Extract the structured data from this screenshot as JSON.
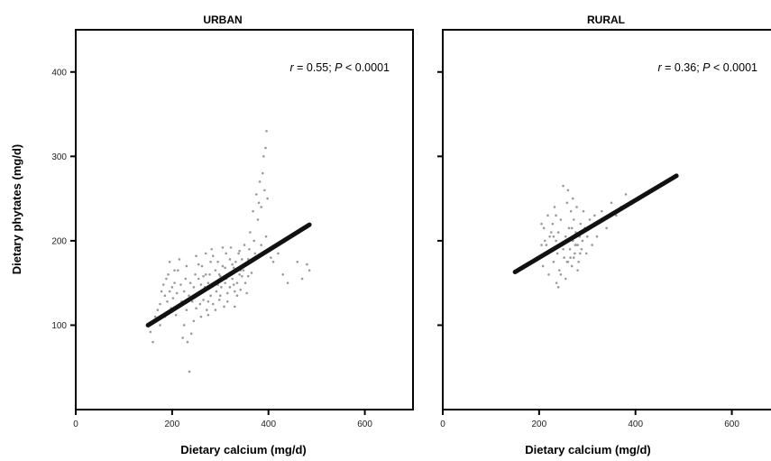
{
  "chart_data": [
    {
      "type": "scatter",
      "title": "URBAN",
      "xlabel": "Dietary calcium  (mg/d)",
      "ylabel": "Dietary phytates  (mg/d)",
      "xlim": [
        0,
        700
      ],
      "ylim": [
        0,
        450
      ],
      "xticks": [
        0,
        200,
        400,
        600
      ],
      "yticks": [
        100,
        200,
        300,
        400
      ],
      "annotation": {
        "r_symbol": "r",
        "r_text": " = 0.55; ",
        "p_symbol": "P",
        "p_text": " < 0.0001"
      },
      "regression_line": [
        [
          150,
          100
        ],
        [
          485,
          219
        ]
      ],
      "scatter_color": "#9a9a9a",
      "line_color": "#111111",
      "points": [
        [
          155,
          92
        ],
        [
          160,
          80
        ],
        [
          165,
          110
        ],
        [
          170,
          118
        ],
        [
          175,
          125
        ],
        [
          178,
          140
        ],
        [
          182,
          148
        ],
        [
          185,
          135
        ],
        [
          188,
          155
        ],
        [
          190,
          128
        ],
        [
          192,
          160
        ],
        [
          195,
          175
        ],
        [
          198,
          120
        ],
        [
          200,
          145
        ],
        [
          202,
          132
        ],
        [
          205,
          150
        ],
        [
          208,
          112
        ],
        [
          210,
          138
        ],
        [
          212,
          165
        ],
        [
          215,
          122
        ],
        [
          218,
          148
        ],
        [
          220,
          128
        ],
        [
          222,
          85
        ],
        [
          225,
          140
        ],
        [
          228,
          155
        ],
        [
          230,
          118
        ],
        [
          232,
          80
        ],
        [
          235,
          135
        ],
        [
          236,
          45
        ],
        [
          238,
          150
        ],
        [
          240,
          90
        ],
        [
          242,
          128
        ],
        [
          245,
          145
        ],
        [
          248,
          160
        ],
        [
          250,
          120
        ],
        [
          252,
          138
        ],
        [
          255,
          155
        ],
        [
          258,
          125
        ],
        [
          260,
          148
        ],
        [
          262,
          170
        ],
        [
          265,
          130
        ],
        [
          268,
          145
        ],
        [
          270,
          185
        ],
        [
          272,
          118
        ],
        [
          275,
          150
        ],
        [
          278,
          160
        ],
        [
          280,
          135
        ],
        [
          282,
          190
        ],
        [
          285,
          125
        ],
        [
          288,
          148
        ],
        [
          290,
          165
        ],
        [
          292,
          140
        ],
        [
          295,
          175
        ],
        [
          298,
          130
        ],
        [
          300,
          158
        ],
        [
          302,
          145
        ],
        [
          305,
          170
        ],
        [
          308,
          122
        ],
        [
          310,
          150
        ],
        [
          312,
          185
        ],
        [
          315,
          138
        ],
        [
          318,
          160
        ],
        [
          320,
          145
        ],
        [
          322,
          192
        ],
        [
          325,
          155
        ],
        [
          328,
          168
        ],
        [
          330,
          140
        ],
        [
          332,
          175
        ],
        [
          335,
          150
        ],
        [
          338,
          185
        ],
        [
          340,
          160
        ],
        [
          342,
          142
        ],
        [
          345,
          178
        ],
        [
          348,
          165
        ],
        [
          350,
          195
        ],
        [
          352,
          150
        ],
        [
          355,
          172
        ],
        [
          358,
          158
        ],
        [
          360,
          190
        ],
        [
          362,
          210
        ],
        [
          365,
          175
        ],
        [
          368,
          235
        ],
        [
          370,
          200
        ],
        [
          372,
          185
        ],
        [
          375,
          255
        ],
        [
          378,
          225
        ],
        [
          380,
          245
        ],
        [
          382,
          270
        ],
        [
          385,
          240
        ],
        [
          388,
          280
        ],
        [
          390,
          300
        ],
        [
          392,
          260
        ],
        [
          394,
          310
        ],
        [
          396,
          330
        ],
        [
          398,
          250
        ],
        [
          400,
          190
        ],
        [
          405,
          180
        ],
        [
          410,
          175
        ],
        [
          420,
          185
        ],
        [
          430,
          160
        ],
        [
          440,
          150
        ],
        [
          460,
          175
        ],
        [
          470,
          155
        ],
        [
          480,
          172
        ],
        [
          485,
          165
        ],
        [
          250,
          182
        ],
        [
          260,
          110
        ],
        [
          270,
          160
        ],
        [
          280,
          175
        ],
        [
          290,
          118
        ],
        [
          300,
          135
        ],
        [
          310,
          168
        ],
        [
          320,
          178
        ],
        [
          330,
          122
        ],
        [
          340,
          188
        ],
        [
          230,
          170
        ],
        [
          215,
          178
        ],
        [
          205,
          165
        ],
        [
          195,
          140
        ],
        [
          185,
          110
        ],
        [
          175,
          100
        ],
        [
          245,
          105
        ],
        [
          255,
          172
        ],
        [
          265,
          158
        ],
        [
          275,
          128
        ],
        [
          285,
          182
        ],
        [
          295,
          148
        ],
        [
          305,
          192
        ],
        [
          315,
          128
        ],
        [
          325,
          172
        ],
        [
          335,
          135
        ],
        [
          345,
          158
        ],
        [
          355,
          138
        ],
        [
          365,
          162
        ],
        [
          375,
          180
        ],
        [
          385,
          195
        ],
        [
          395,
          205
        ],
        [
          225,
          100
        ],
        [
          240,
          132
        ],
        [
          265,
          142
        ],
        [
          275,
          112
        ],
        [
          298,
          160
        ],
        [
          312,
          155
        ],
        [
          328,
          148
        ],
        [
          342,
          165
        ],
        [
          358,
          178
        ]
      ]
    },
    {
      "type": "scatter",
      "title": "RURAL",
      "xlabel": "Dietary calcium  (mg/d)",
      "ylabel": "",
      "xlim": [
        0,
        700
      ],
      "ylim": [
        0,
        450
      ],
      "xticks": [
        0,
        200,
        400,
        600
      ],
      "yticks": [
        100,
        200,
        300,
        400
      ],
      "annotation": {
        "r_symbol": "r",
        "r_text": " = 0.36; ",
        "p_symbol": "P",
        "p_text": " < 0.0001"
      },
      "regression_line": [
        [
          150,
          163
        ],
        [
          485,
          277
        ]
      ],
      "scatter_color": "#9a9a9a",
      "line_color": "#111111",
      "points": [
        [
          200,
          180
        ],
        [
          205,
          195
        ],
        [
          208,
          170
        ],
        [
          210,
          215
        ],
        [
          212,
          200
        ],
        [
          215,
          185
        ],
        [
          218,
          230
        ],
        [
          220,
          160
        ],
        [
          222,
          205
        ],
        [
          225,
          190
        ],
        [
          228,
          220
        ],
        [
          230,
          175
        ],
        [
          232,
          240
        ],
        [
          235,
          200
        ],
        [
          236,
          150
        ],
        [
          238,
          185
        ],
        [
          240,
          210
        ],
        [
          242,
          165
        ],
        [
          245,
          225
        ],
        [
          248,
          195
        ],
        [
          250,
          265
        ],
        [
          252,
          180
        ],
        [
          255,
          205
        ],
        [
          258,
          245
        ],
        [
          260,
          175
        ],
        [
          262,
          215
        ],
        [
          264,
          190
        ],
        [
          266,
          235
        ],
        [
          268,
          170
        ],
        [
          270,
          200
        ],
        [
          272,
          225
        ],
        [
          274,
          185
        ],
        [
          276,
          210
        ],
        [
          278,
          240
        ],
        [
          280,
          195
        ],
        [
          282,
          175
        ],
        [
          284,
          205
        ],
        [
          286,
          220
        ],
        [
          288,
          190
        ],
        [
          290,
          200
        ],
        [
          292,
          235
        ],
        [
          295,
          215
        ],
        [
          298,
          185
        ],
        [
          300,
          205
        ],
        [
          305,
          225
        ],
        [
          310,
          195
        ],
        [
          315,
          230
        ],
        [
          320,
          205
        ],
        [
          330,
          235
        ],
        [
          340,
          215
        ],
        [
          350,
          245
        ],
        [
          360,
          230
        ],
        [
          370,
          240
        ],
        [
          380,
          255
        ],
        [
          390,
          245
        ],
        [
          240,
          145
        ],
        [
          245,
          160
        ],
        [
          255,
          155
        ],
        [
          265,
          180
        ],
        [
          275,
          195
        ],
        [
          230,
          205
        ],
        [
          235,
          230
        ],
        [
          260,
          260
        ],
        [
          270,
          250
        ],
        [
          280,
          165
        ],
        [
          285,
          185
        ],
        [
          250,
          190
        ],
        [
          258,
          175
        ],
        [
          262,
          200
        ],
        [
          268,
          215
        ],
        [
          272,
          180
        ],
        [
          276,
          195
        ],
        [
          225,
          210
        ],
        [
          215,
          195
        ],
        [
          205,
          220
        ]
      ]
    }
  ]
}
